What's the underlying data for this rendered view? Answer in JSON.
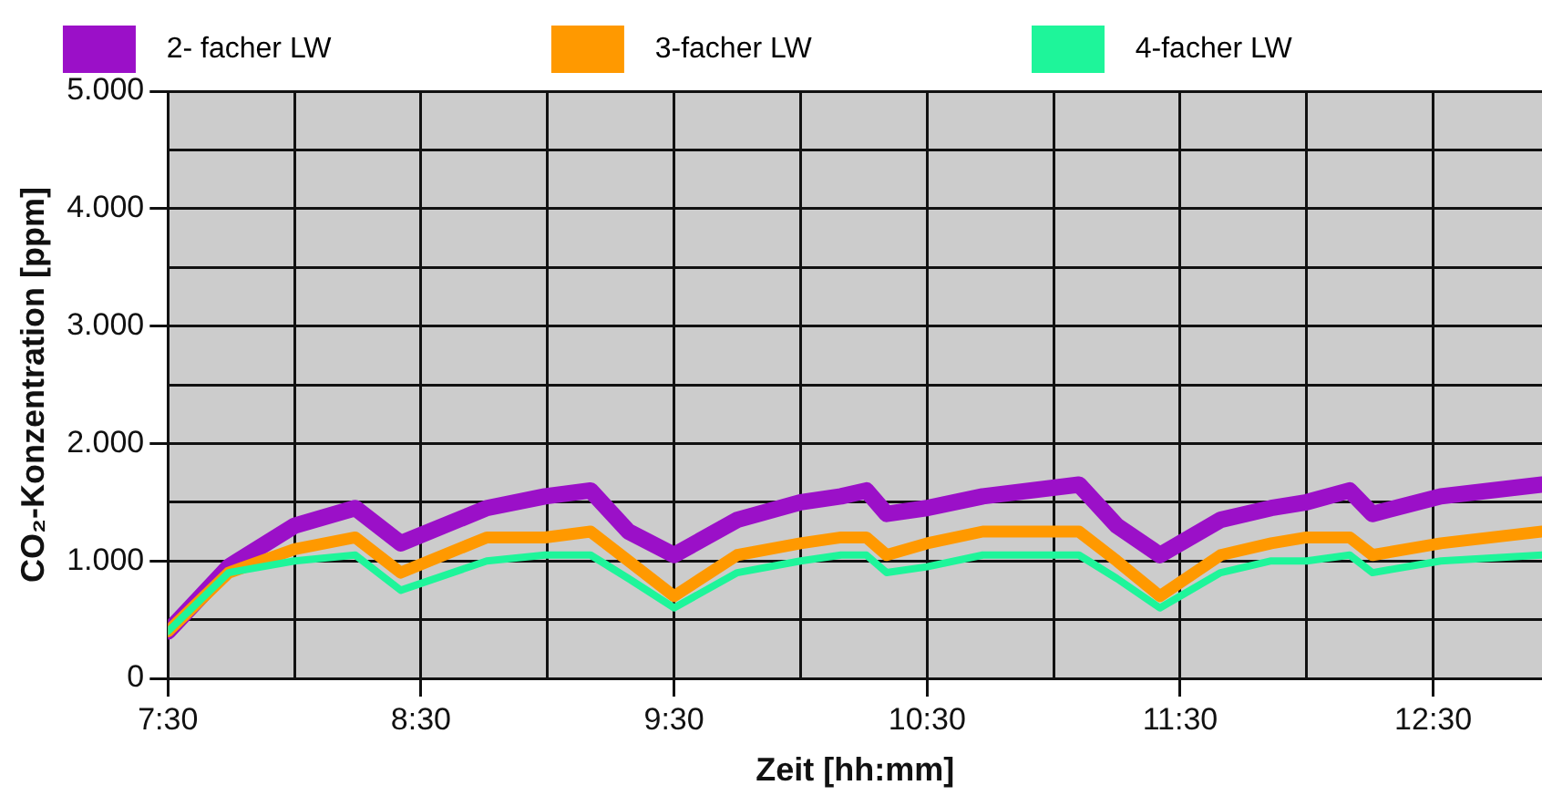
{
  "chart_data": {
    "type": "line",
    "xlabel": "Zeit [hh:mm]",
    "ylabel": "CO₂-Konzentration [ppm]",
    "xlim": [
      7.5,
      12.93
    ],
    "xticks": [
      {
        "value": 7.5,
        "label": "7:30"
      },
      {
        "value": 8,
        "label": null
      },
      {
        "value": 8.5,
        "label": "8:30"
      },
      {
        "value": 9,
        "label": null
      },
      {
        "value": 9.5,
        "label": "9:30"
      },
      {
        "value": 10,
        "label": null
      },
      {
        "value": 10.5,
        "label": "10:30"
      },
      {
        "value": 11,
        "label": null
      },
      {
        "value": 11.5,
        "label": "11:30"
      },
      {
        "value": 12,
        "label": null
      },
      {
        "value": 12.5,
        "label": "12:30"
      }
    ],
    "ylim": [
      0,
      5000
    ],
    "yticks": [
      0,
      {
        "value": 500,
        "label": null
      },
      {
        "value": 1000,
        "label": "1.000"
      },
      {
        "value": 1500,
        "label": null
      },
      {
        "value": 2000,
        "label": "2.000"
      },
      {
        "value": 2500,
        "label": null
      },
      {
        "value": 3000,
        "label": "3.000"
      },
      {
        "value": 3500,
        "label": null
      },
      {
        "value": 4000,
        "label": "4.000"
      },
      {
        "value": 4500,
        "label": null
      },
      {
        "value": 5000,
        "label": "5.000"
      }
    ],
    "grid": true,
    "legend": "top",
    "marker": "none",
    "line_style": "solid",
    "x": [
      7.5,
      7.74,
      8.0,
      8.24,
      8.42,
      8.76,
      8.99,
      9.17,
      9.32,
      9.5,
      9.75,
      10.0,
      10.16,
      10.26,
      10.34,
      10.5,
      10.72,
      11.1,
      11.25,
      11.42,
      11.66,
      11.86,
      12.0,
      12.17,
      12.26,
      12.53,
      12.93
    ],
    "series": [
      {
        "name": "2- facher LW",
        "color": "#9b10c8",
        "values": [
          400,
          950,
          1300,
          1450,
          1150,
          1450,
          1550,
          1600,
          1250,
          1050,
          1350,
          1500,
          1550,
          1600,
          1400,
          1450,
          1550,
          1650,
          1300,
          1050,
          1350,
          1450,
          1500,
          1600,
          1400,
          1550,
          1650
        ]
      },
      {
        "name": "3-facher LW",
        "color": "#ff9900",
        "values": [
          400,
          900,
          1100,
          1200,
          900,
          1200,
          1200,
          1250,
          1000,
          700,
          1050,
          1150,
          1200,
          1200,
          1050,
          1150,
          1250,
          1250,
          1000,
          700,
          1050,
          1150,
          1200,
          1200,
          1050,
          1150,
          1250
        ]
      },
      {
        "name": "4-facher LW",
        "color": "#1ef59a",
        "values": [
          400,
          900,
          1000,
          1050,
          750,
          1000,
          1050,
          1050,
          850,
          600,
          900,
          1000,
          1050,
          1050,
          900,
          950,
          1050,
          1050,
          850,
          600,
          900,
          1000,
          1000,
          1050,
          900,
          1000,
          1050
        ]
      }
    ]
  }
}
